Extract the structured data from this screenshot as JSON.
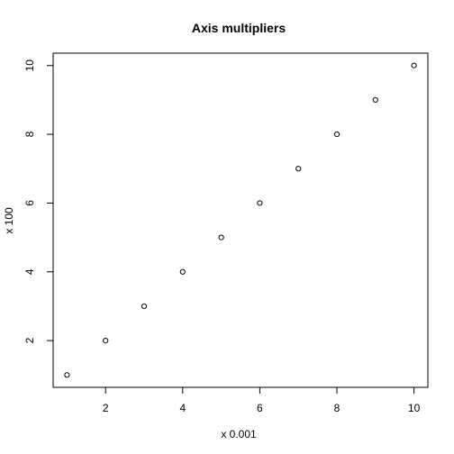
{
  "chart_data": {
    "type": "scatter",
    "title": "Axis multipliers",
    "xlabel": "x 0.001",
    "ylabel": "x 100",
    "x": [
      1,
      2,
      3,
      4,
      5,
      6,
      7,
      8,
      9,
      10
    ],
    "y": [
      1,
      2,
      3,
      4,
      5,
      6,
      7,
      8,
      9,
      10
    ],
    "xlim": [
      0.64,
      10.36
    ],
    "ylim": [
      0.64,
      10.36
    ],
    "xticks": [
      2,
      4,
      6,
      8,
      10
    ],
    "yticks": [
      2,
      4,
      6,
      8,
      10
    ],
    "marker": "open-circle",
    "grid": false,
    "legend": "none"
  }
}
